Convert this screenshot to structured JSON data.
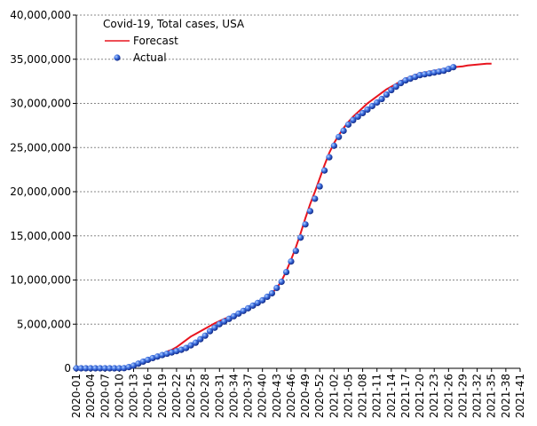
{
  "chart_data": {
    "type": "line",
    "title": "Covid-19, Total cases, USA",
    "categories": [
      "2020-01",
      null,
      null,
      "2020-04",
      null,
      null,
      "2020-07",
      null,
      null,
      "2020-10",
      null,
      null,
      "2020-13",
      null,
      null,
      "2020-16",
      null,
      null,
      "2020-19",
      null,
      null,
      "2020-22",
      null,
      null,
      "2020-25",
      null,
      null,
      "2020-28",
      null,
      null,
      "2020-31",
      null,
      null,
      "2020-34",
      null,
      null,
      "2020-37",
      null,
      null,
      "2020-40",
      null,
      null,
      "2020-43",
      null,
      null,
      "2020-46",
      null,
      null,
      "2020-49",
      null,
      null,
      "2020-52",
      null,
      null,
      "2021-02",
      null,
      null,
      "2021-05",
      null,
      null,
      "2021-08",
      null,
      null,
      "2021-11",
      null,
      null,
      "2021-14",
      null,
      null,
      "2021-17",
      null,
      null,
      "2021-20",
      null,
      null,
      "2021-23",
      null,
      null,
      "2021-26",
      null,
      null,
      "2021-29",
      null,
      null,
      "2021-32",
      null,
      null,
      "2021-35",
      null,
      null,
      "2021-38",
      null,
      null,
      "2021-41"
    ],
    "series": [
      {
        "name": "Forecast",
        "color": "#e8141e",
        "marker": "line",
        "values": [
          0,
          0,
          0,
          0,
          0,
          0,
          0,
          0,
          0,
          0,
          20000,
          140000,
          300000,
          530000,
          760000,
          960000,
          1160000,
          1350000,
          1550000,
          1900000,
          2100000,
          2400000,
          2800000,
          3200000,
          3600000,
          3900000,
          4200000,
          4500000,
          4800000,
          5100000,
          5350000,
          5600000,
          5800000,
          6000000,
          6250000,
          6500000,
          6800000,
          7100000,
          7400000,
          7700000,
          8100000,
          8500000,
          9100000,
          9900000,
          11000000,
          12300000,
          13700000,
          15300000,
          17000000,
          18600000,
          20000000,
          21500000,
          23000000,
          24400000,
          25500000,
          26400000,
          27200000,
          27900000,
          28500000,
          29000000,
          29500000,
          30000000,
          30400000,
          30800000,
          31200000,
          31600000,
          31900000,
          32200000,
          32500000,
          32800000,
          33000000,
          33200000,
          33400000,
          33500000,
          33600000,
          33700000,
          33800000,
          33900000,
          34000000,
          34100000,
          34150000,
          34200000,
          34300000,
          34350000,
          34400000,
          34450000,
          34500000,
          34500000,
          null,
          null,
          null,
          null,
          null,
          null
        ]
      },
      {
        "name": "Actual",
        "color": "#1a3fc8",
        "marker": "dot",
        "values": [
          0,
          0,
          0,
          0,
          0,
          0,
          0,
          20,
          100,
          1000,
          20000,
          140000,
          300000,
          530000,
          760000,
          960000,
          1160000,
          1330000,
          1500000,
          1650000,
          1800000,
          1950000,
          2100000,
          2300000,
          2600000,
          2900000,
          3300000,
          3700000,
          4200000,
          4600000,
          5000000,
          5300000,
          5600000,
          5900000,
          6200000,
          6500000,
          6800000,
          7100000,
          7400000,
          7700000,
          8100000,
          8500000,
          9100000,
          9800000,
          10900000,
          12100000,
          13300000,
          14800000,
          16300000,
          17800000,
          19200000,
          20600000,
          22400000,
          23900000,
          25200000,
          26200000,
          26900000,
          27600000,
          28100000,
          28500000,
          28900000,
          29300000,
          29700000,
          30100000,
          30500000,
          31000000,
          31500000,
          31900000,
          32300000,
          32600000,
          32800000,
          33000000,
          33200000,
          33300000,
          33400000,
          33500000,
          33600000,
          33700000,
          33900000,
          34100000,
          null,
          null,
          null,
          null,
          null,
          null,
          null,
          null,
          null,
          null,
          null,
          null,
          null,
          null
        ]
      }
    ],
    "ylim": [
      0,
      40000000
    ],
    "yticks": [
      0,
      {
        "value": 5000000,
        "label": "5,000,000"
      },
      {
        "value": 10000000,
        "label": "10,000,000"
      },
      {
        "value": 15000000,
        "label": "15,000,000"
      },
      {
        "value": 20000000,
        "label": "20,000,000"
      },
      {
        "value": 25000000,
        "label": "25,000,000"
      },
      {
        "value": 30000000,
        "label": "30,000,000"
      },
      {
        "value": 35000000,
        "label": "35,000,000"
      },
      {
        "value": 40000000,
        "label": "40,000,000"
      }
    ],
    "grid": true,
    "legend": "upper left"
  }
}
